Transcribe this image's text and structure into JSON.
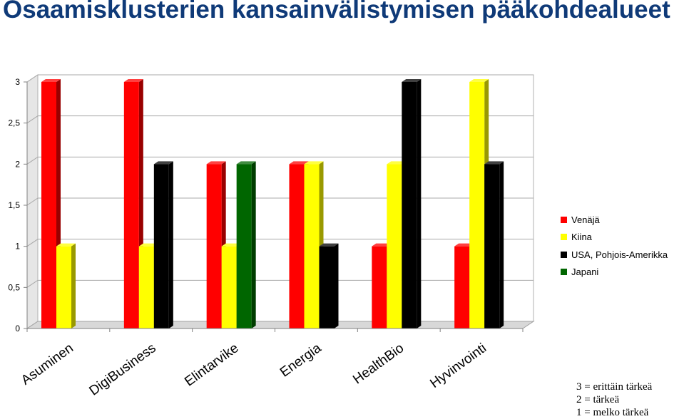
{
  "title": "Osaamisklusterien kansainvälistymisen pääkohdealueet",
  "chart_data": {
    "type": "bar",
    "categories": [
      "Asuminen",
      "DigiBusiness",
      "Elintarvike",
      "Energia",
      "HealthBio",
      "Hyvinvointi"
    ],
    "series": [
      {
        "name": "Venäjä",
        "color": "#ff0000",
        "values": [
          3,
          3,
          2,
          2,
          1,
          1
        ]
      },
      {
        "name": "Kiina",
        "color": "#ffff00",
        "values": [
          1,
          1,
          1,
          2,
          2,
          3
        ]
      },
      {
        "name": "USA, Pohjois-Amerikka",
        "color": "#000000",
        "values": [
          null,
          2,
          null,
          1,
          3,
          2
        ]
      },
      {
        "name": "Japani",
        "color": "#006600",
        "values": [
          null,
          null,
          2,
          null,
          null,
          null
        ]
      }
    ],
    "yticks": [
      "0",
      "0,5",
      "1",
      "1,5",
      "2",
      "2,5",
      "3"
    ],
    "ylim": [
      0,
      3
    ],
    "grid": true,
    "legend": "right"
  },
  "note": {
    "lines": [
      "3 = erittäin tärkeä",
      "2 = tärkeä",
      "1 = melko tärkeä"
    ]
  }
}
